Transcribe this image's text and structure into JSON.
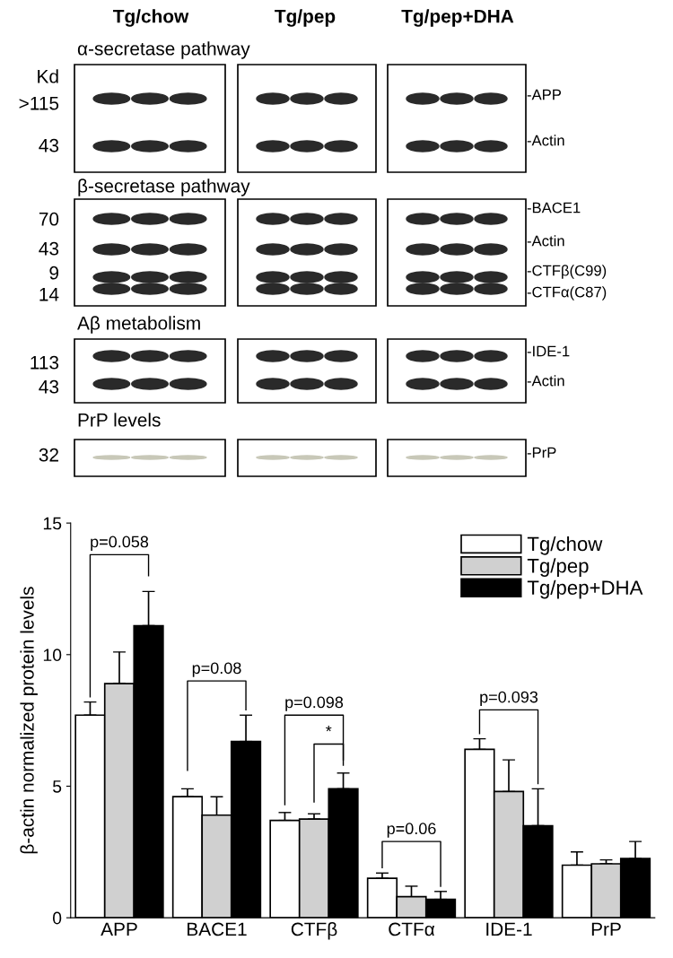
{
  "chart_data": [
    {
      "type": "other",
      "annotations": [
        "Tg/chow",
        "Tg/pep",
        "Tg/pep+DHA",
        "α-secretase pathway",
        "Kd",
        ">115",
        "43",
        "-APP",
        "-Actin",
        "β-secretase pathway",
        "70",
        "43",
        "9",
        "14",
        "-BACE1",
        "-Actin",
        "-CTFβ(C99)",
        "-CTFα(C87)",
        "Aβ metabolism",
        "113",
        "43",
        "-IDE-1",
        "-Actin",
        "PrP levels",
        "32",
        "-PrP"
      ]
    },
    {
      "type": "bar",
      "ylabel": "β-actin normalized protein levels",
      "categories": [
        "APP",
        "BACE1",
        "CTFβ",
        "CTFα",
        "IDE-1",
        "PrP"
      ],
      "series": [
        {
          "name": "Tg/chow",
          "color": "#ffffff",
          "values": [
            7.7,
            4.6,
            3.7,
            1.5,
            6.4,
            2.0
          ],
          "errors": [
            [
              7.7,
              8.2
            ],
            [
              4.6,
              4.9
            ],
            [
              3.7,
              4.0
            ],
            [
              1.5,
              1.7
            ],
            [
              6.4,
              6.8
            ],
            [
              2.0,
              2.5
            ]
          ]
        },
        {
          "name": "Tg/pep",
          "color": "#d0d0d0",
          "values": [
            8.9,
            3.9,
            3.75,
            0.8,
            4.8,
            2.05
          ],
          "errors": [
            [
              8.9,
              10.1
            ],
            [
              3.9,
              4.6
            ],
            [
              3.75,
              3.95
            ],
            [
              0.8,
              1.2
            ],
            [
              4.8,
              6.0
            ],
            [
              2.05,
              2.2
            ]
          ]
        },
        {
          "name": "Tg/pep+DHA",
          "color": "#000000",
          "values": [
            11.1,
            6.7,
            4.9,
            0.7,
            3.5,
            2.25
          ],
          "errors": [
            [
              11.1,
              12.4
            ],
            [
              6.7,
              7.7
            ],
            [
              4.9,
              5.5
            ],
            [
              0.7,
              1.0
            ],
            [
              3.5,
              4.9
            ],
            [
              2.25,
              2.9
            ]
          ]
        }
      ],
      "ylim": [
        0,
        15
      ],
      "yticks": [
        0,
        5,
        10,
        15
      ],
      "grid": false,
      "legend": "top right",
      "annotations": [
        "p=0.058",
        "p=0.08",
        "p=0.098",
        "*",
        "p=0.06",
        "p=0.093"
      ]
    }
  ]
}
